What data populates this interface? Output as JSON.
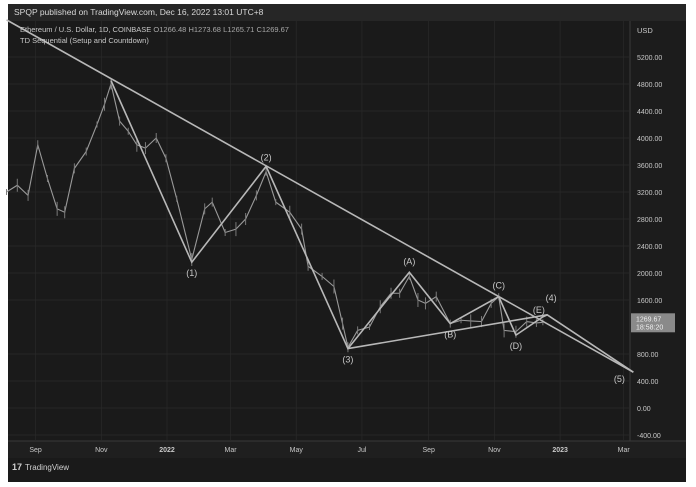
{
  "header": {
    "published": "SPQP published on TradingView.com, Dec 16, 2022 13:01 UTC+8",
    "symbol": "Ethereum / U.S. Dollar, 1D, COINBASE",
    "ohlc": {
      "o": "O1266.48",
      "h": "H1273.68",
      "l": "L1265.71",
      "c": "C1269.67"
    },
    "indicator": "TD Sequential (Setup and Countdown)"
  },
  "footer": {
    "brand": "TradingView",
    "logo": "17"
  },
  "last_price": {
    "price": "1269.67",
    "countdown": "18:58:20"
  },
  "colors": {
    "background": "#1a1a1a",
    "price": "#9a9a9a",
    "lines": "#b8b8b8",
    "text": "#c8c8c8"
  },
  "chart_data": {
    "type": "line",
    "title": "",
    "xlabel": "",
    "ylabel": "",
    "currency_label": "USD",
    "ylim": [
      -400,
      5600
    ],
    "grid": true,
    "y_ticks": [
      "5200.00",
      "4800.00",
      "4400.00",
      "4000.00",
      "3600.00",
      "3200.00",
      "2800.00",
      "2400.00",
      "2000.00",
      "1600.00",
      "800.00",
      "400.00",
      "0.00",
      "-400.00"
    ],
    "x_ticks": [
      {
        "label": "Sep",
        "date": "2021-09-01",
        "bold": false
      },
      {
        "label": "Nov",
        "date": "2021-11-01",
        "bold": false
      },
      {
        "label": "2022",
        "date": "2022-01-01",
        "bold": true
      },
      {
        "label": "Mar",
        "date": "2022-03-01",
        "bold": false
      },
      {
        "label": "May",
        "date": "2022-05-01",
        "bold": false
      },
      {
        "label": "Jul",
        "date": "2022-07-01",
        "bold": false
      },
      {
        "label": "Sep",
        "date": "2022-09-01",
        "bold": false
      },
      {
        "label": "Nov",
        "date": "2022-11-01",
        "bold": false
      },
      {
        "label": "2023",
        "date": "2023-01-01",
        "bold": true
      },
      {
        "label": "Mar",
        "date": "2023-03-01",
        "bold": false
      }
    ],
    "series": [
      {
        "x": [
          "2021-08-05",
          "2021-08-15",
          "2021-08-25",
          "2021-09-03",
          "2021-09-12",
          "2021-09-21",
          "2021-09-28",
          "2021-10-07",
          "2021-10-18",
          "2021-10-28",
          "2021-11-04",
          "2021-11-10",
          "2021-11-18",
          "2021-11-26",
          "2021-12-04",
          "2021-12-12",
          "2021-12-22",
          "2021-12-31",
          "2022-01-10",
          "2022-01-24",
          "2022-02-05",
          "2022-02-12",
          "2022-02-24",
          "2022-03-06",
          "2022-03-15",
          "2022-03-25",
          "2022-04-03",
          "2022-04-12",
          "2022-04-25",
          "2022-05-06",
          "2022-05-12",
          "2022-05-25",
          "2022-06-05",
          "2022-06-13",
          "2022-06-18",
          "2022-06-27",
          "2022-07-08",
          "2022-07-18",
          "2022-07-28",
          "2022-08-05",
          "2022-08-14",
          "2022-08-22",
          "2022-08-29",
          "2022-09-08",
          "2022-09-21",
          "2022-10-01",
          "2022-10-10",
          "2022-10-20",
          "2022-10-29",
          "2022-11-05",
          "2022-11-10",
          "2022-11-21",
          "2022-12-01",
          "2022-12-10",
          "2022-12-16"
        ],
        "values": [
          3200,
          3300,
          3150,
          3900,
          3400,
          2950,
          2900,
          3550,
          3800,
          4200,
          4500,
          4800,
          4250,
          4100,
          3900,
          3850,
          4000,
          3700,
          3100,
          2200,
          2950,
          3050,
          2600,
          2650,
          2800,
          3150,
          3500,
          3050,
          2900,
          2650,
          2100,
          1950,
          1800,
          1250,
          900,
          1150,
          1200,
          1500,
          1700,
          1700,
          1950,
          1600,
          1550,
          1650,
          1250,
          1300,
          1290,
          1280,
          1550,
          1650,
          1150,
          1130,
          1280,
          1260,
          1270
        ]
      }
    ],
    "trendlines": [
      {
        "from": {
          "date": "2021-08-05",
          "price": 5750
        },
        "to": {
          "date": "2023-03-10",
          "price": 530
        }
      },
      {
        "from": {
          "date": "2022-06-18",
          "price": 880
        },
        "to": {
          "date": "2022-12-20",
          "price": 1380
        }
      }
    ],
    "wave_path": [
      {
        "date": "2021-11-10",
        "price": 4850,
        "label": ""
      },
      {
        "date": "2022-01-24",
        "price": 2160,
        "label": "(1)"
      },
      {
        "date": "2022-04-03",
        "price": 3580,
        "label": "(2)"
      },
      {
        "date": "2022-06-18",
        "price": 880,
        "label": "(3)"
      },
      {
        "date": "2022-08-14",
        "price": 2010,
        "label": "(A)"
      },
      {
        "date": "2022-09-21",
        "price": 1250,
        "label": "(B)"
      },
      {
        "date": "2022-11-05",
        "price": 1650,
        "label": "(C)"
      },
      {
        "date": "2022-11-21",
        "price": 1080,
        "label": "(D)"
      },
      {
        "date": "2022-12-16",
        "price": 1350,
        "label": "(E)"
      },
      {
        "date": "2022-12-20",
        "price": 1380,
        "label": "(4)"
      },
      {
        "date": "2023-03-10",
        "price": 530,
        "label": "(5)"
      }
    ]
  }
}
